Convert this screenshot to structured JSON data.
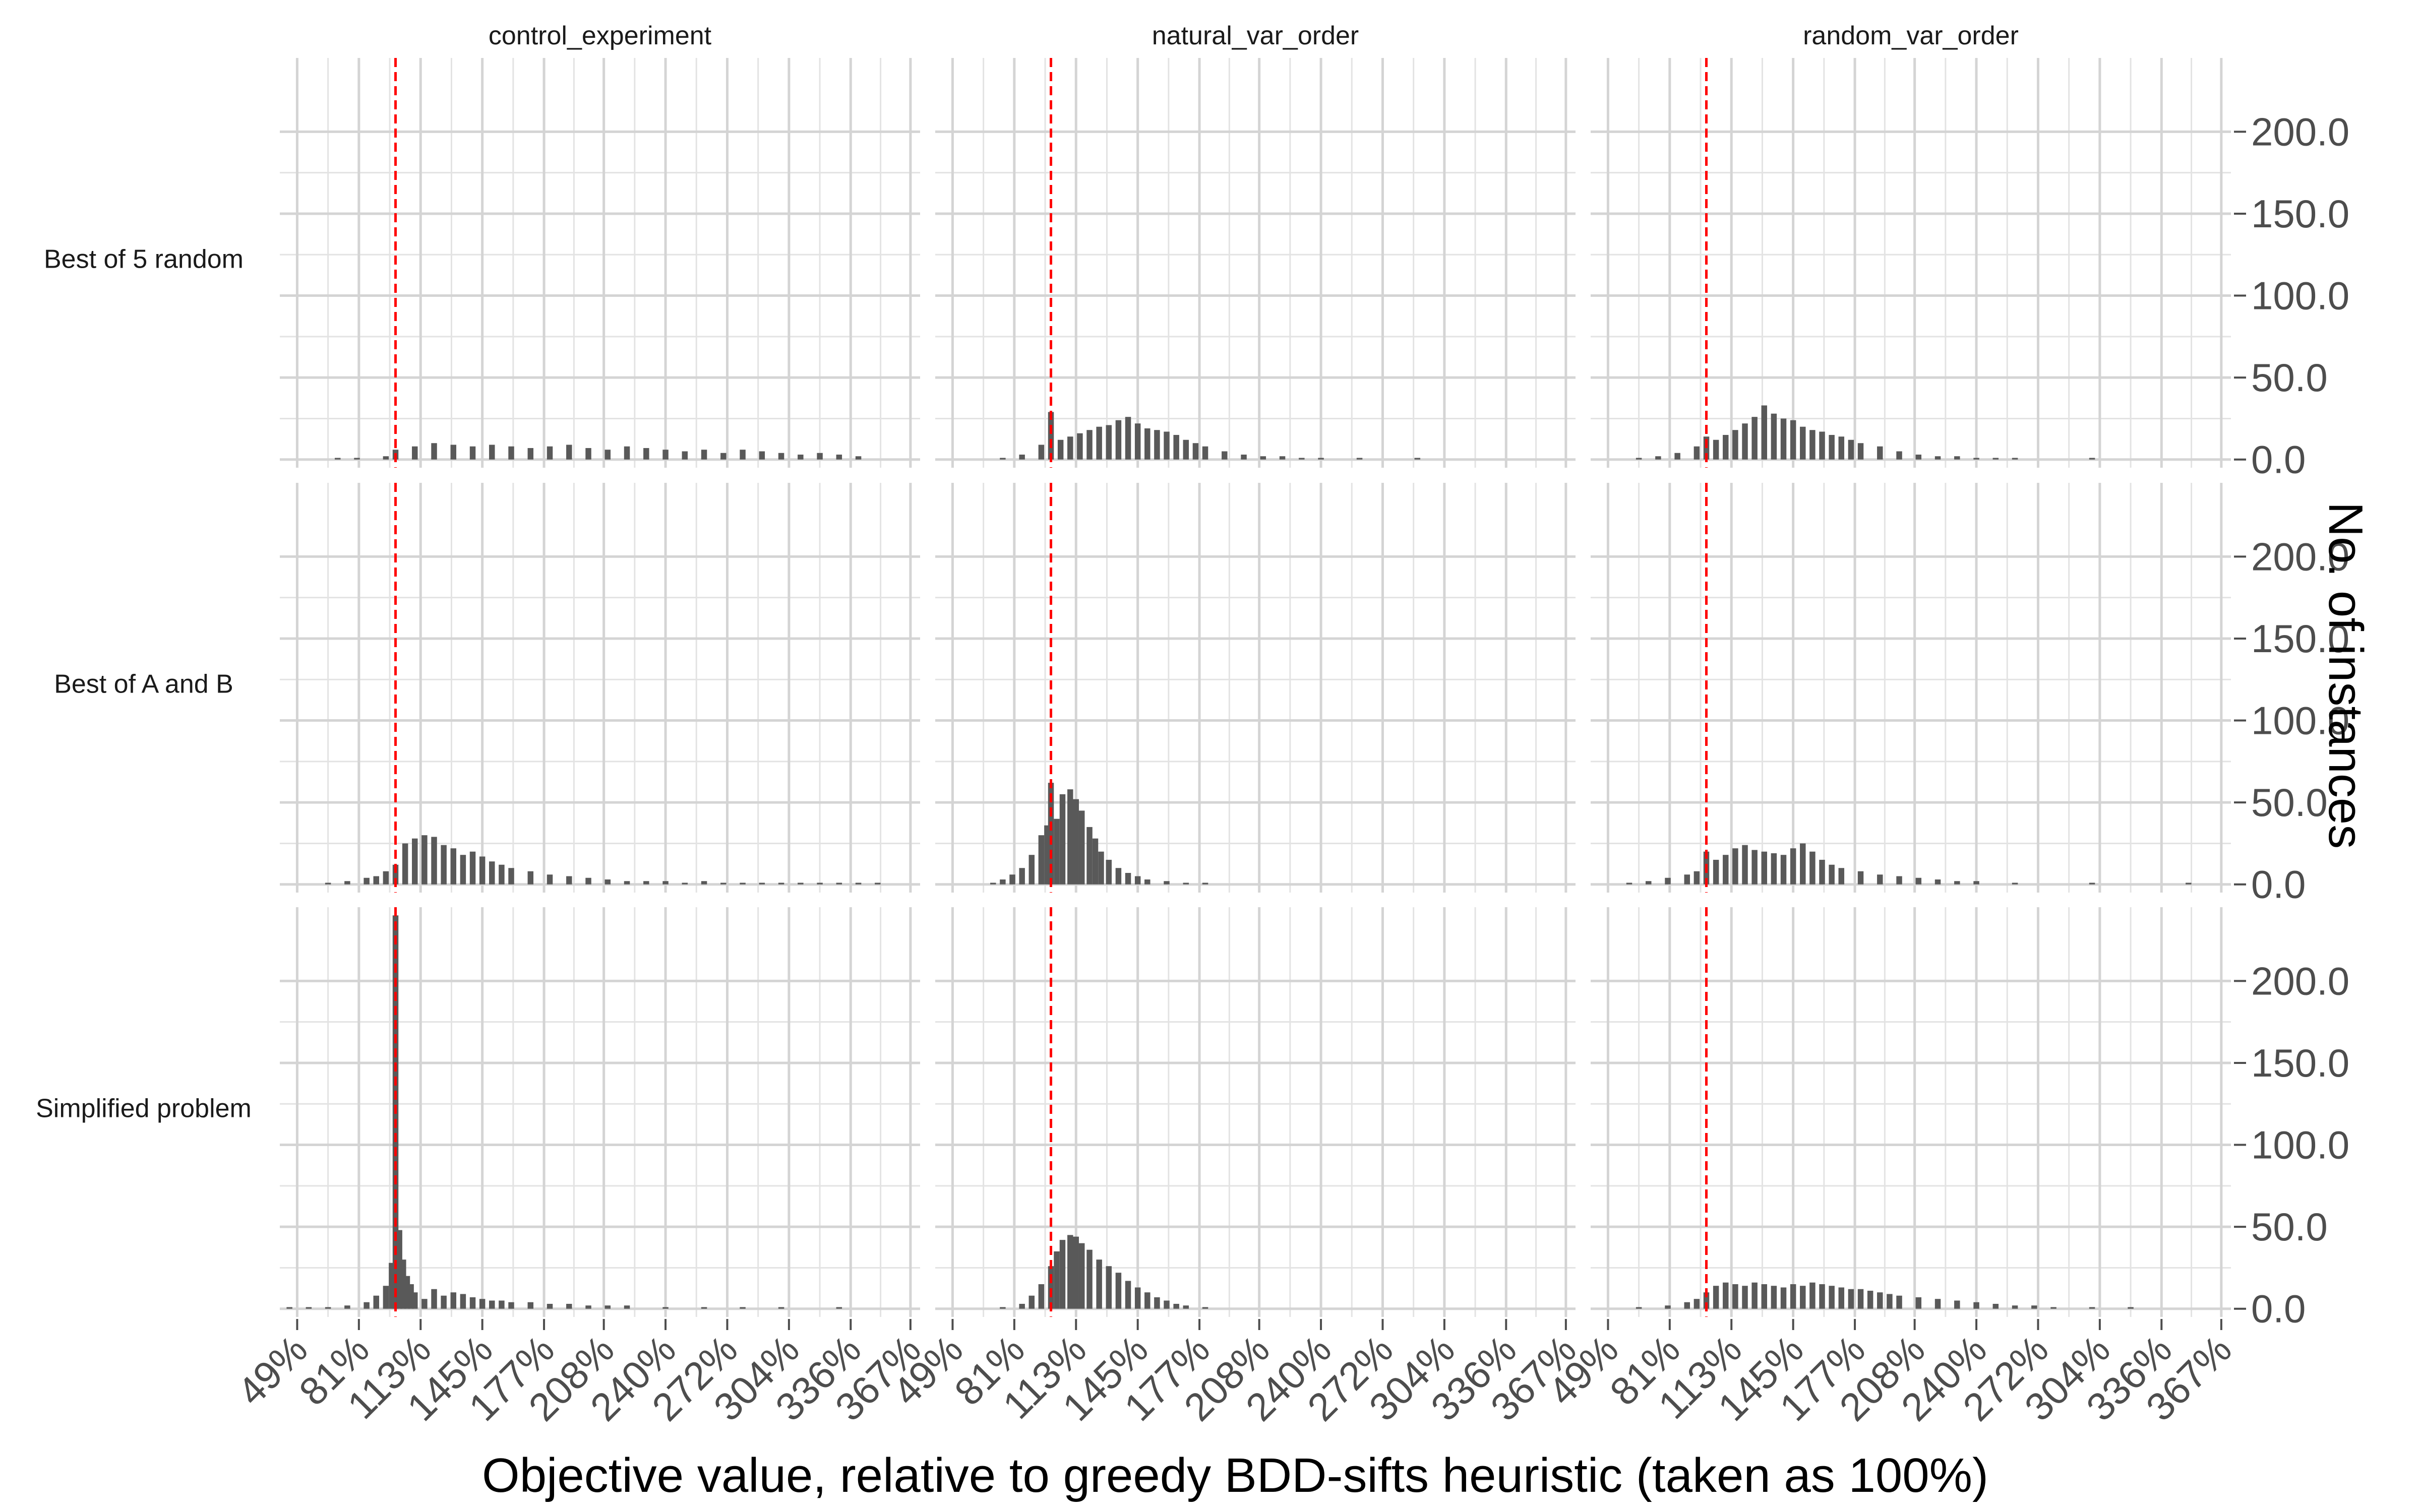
{
  "chart_data": {
    "type": "bar",
    "subtype": "faceted histogram",
    "xlabel": "Objective value, relative to greedy BDD-sifts heuristic (taken as 100%)",
    "ylabel": "No. of instances",
    "x_ticks": [
      "49%",
      "81%",
      "113%",
      "145%",
      "177%",
      "208%",
      "240%",
      "272%",
      "304%",
      "336%",
      "367%"
    ],
    "x_tick_values": [
      49,
      81,
      113,
      145,
      177,
      208,
      240,
      272,
      304,
      336,
      367
    ],
    "xlim": [
      40,
      372
    ],
    "y_ticks": [
      "0.0",
      "50.0",
      "100.0",
      "150.0",
      "200.0"
    ],
    "y_tick_values": [
      0,
      50,
      100,
      150,
      200
    ],
    "ylim": [
      -5,
      245
    ],
    "reference_line": {
      "x": 100,
      "color": "#ff0000",
      "style": "dashed"
    },
    "bar_color": "#595959",
    "grid": true,
    "columns": [
      "control_experiment",
      "natural_var_order",
      "random_var_order"
    ],
    "rows": [
      "Best of 5 random",
      "Best of A and B",
      "Simplified problem"
    ],
    "panels": [
      {
        "row": "Best of 5 random",
        "column": "control_experiment",
        "x": [
          70,
          80,
          95,
          100,
          110,
          120,
          130,
          140,
          150,
          160,
          170,
          180,
          190,
          200,
          210,
          220,
          230,
          240,
          250,
          260,
          270,
          280,
          290,
          300,
          310,
          320,
          330,
          340
        ],
        "y": [
          1,
          1,
          2,
          6,
          8,
          10,
          9,
          8,
          9,
          8,
          7,
          8,
          9,
          7,
          6,
          8,
          7,
          6,
          5,
          6,
          4,
          6,
          5,
          4,
          3,
          4,
          3,
          2
        ]
      },
      {
        "row": "Best of 5 random",
        "column": "natural_var_order",
        "x": [
          75,
          85,
          95,
          100,
          105,
          110,
          115,
          120,
          125,
          130,
          135,
          140,
          145,
          150,
          155,
          160,
          165,
          170,
          175,
          180,
          190,
          200,
          210,
          220,
          230,
          240,
          260,
          290
        ],
        "y": [
          1,
          3,
          9,
          29,
          12,
          14,
          16,
          18,
          20,
          21,
          24,
          26,
          22,
          19,
          18,
          17,
          15,
          12,
          10,
          8,
          5,
          3,
          2,
          2,
          1,
          1,
          1,
          1
        ]
      },
      {
        "row": "Best of 5 random",
        "column": "random_var_order",
        "x": [
          65,
          75,
          85,
          95,
          100,
          105,
          110,
          115,
          120,
          125,
          130,
          135,
          140,
          145,
          150,
          155,
          160,
          165,
          170,
          175,
          180,
          190,
          200,
          210,
          220,
          230,
          240,
          250,
          260,
          300
        ],
        "y": [
          1,
          2,
          4,
          8,
          14,
          12,
          15,
          18,
          22,
          26,
          33,
          28,
          25,
          24,
          20,
          18,
          17,
          15,
          14,
          12,
          10,
          8,
          5,
          3,
          2,
          2,
          1,
          1,
          1,
          1
        ]
      },
      {
        "row": "Best of A and B",
        "column": "control_experiment",
        "x": [
          65,
          75,
          85,
          90,
          95,
          100,
          105,
          110,
          115,
          120,
          125,
          130,
          135,
          140,
          145,
          150,
          155,
          160,
          170,
          180,
          190,
          200,
          210,
          220,
          230,
          240,
          250,
          260,
          270,
          280,
          290,
          300,
          310,
          320,
          330,
          340,
          350
        ],
        "y": [
          1,
          2,
          4,
          5,
          8,
          12,
          25,
          28,
          30,
          29,
          24,
          22,
          18,
          20,
          17,
          14,
          12,
          10,
          8,
          6,
          5,
          4,
          3,
          2,
          2,
          2,
          1,
          2,
          1,
          1,
          1,
          1,
          1,
          1,
          1,
          1,
          1
        ]
      },
      {
        "row": "Best of A and B",
        "column": "natural_var_order",
        "x": [
          70,
          75,
          80,
          85,
          90,
          95,
          98,
          100,
          103,
          106,
          110,
          113,
          116,
          120,
          123,
          126,
          130,
          135,
          140,
          145,
          150,
          160,
          170,
          180
        ],
        "y": [
          1,
          3,
          6,
          10,
          18,
          30,
          36,
          62,
          40,
          55,
          58,
          52,
          45,
          35,
          28,
          20,
          15,
          10,
          7,
          5,
          3,
          2,
          1,
          1
        ]
      },
      {
        "row": "Best of A and B",
        "column": "random_var_order",
        "x": [
          60,
          70,
          80,
          90,
          95,
          100,
          105,
          110,
          115,
          120,
          125,
          130,
          135,
          140,
          145,
          150,
          155,
          160,
          165,
          170,
          180,
          190,
          200,
          210,
          220,
          230,
          240,
          260,
          300,
          350
        ],
        "y": [
          1,
          2,
          4,
          6,
          8,
          20,
          15,
          18,
          22,
          24,
          21,
          20,
          19,
          18,
          22,
          25,
          20,
          15,
          12,
          10,
          8,
          6,
          5,
          4,
          3,
          2,
          2,
          1,
          1,
          1
        ]
      },
      {
        "row": "Simplified problem",
        "column": "control_experiment",
        "x": [
          45,
          55,
          65,
          75,
          85,
          90,
          95,
          98,
          100,
          102,
          104,
          106,
          108,
          110,
          115,
          120,
          125,
          130,
          135,
          140,
          145,
          150,
          155,
          160,
          170,
          180,
          190,
          200,
          210,
          220,
          240,
          260,
          280,
          300,
          330
        ],
        "y": [
          1,
          1,
          1,
          2,
          4,
          8,
          14,
          28,
          240,
          48,
          30,
          20,
          15,
          10,
          6,
          12,
          8,
          10,
          9,
          7,
          6,
          5,
          5,
          4,
          4,
          3,
          3,
          2,
          2,
          2,
          1,
          1,
          1,
          1,
          1
        ]
      },
      {
        "row": "Simplified problem",
        "column": "natural_var_order",
        "x": [
          75,
          85,
          90,
          95,
          100,
          103,
          106,
          110,
          113,
          116,
          120,
          125,
          130,
          135,
          140,
          145,
          150,
          155,
          160,
          165,
          170,
          180
        ],
        "y": [
          1,
          3,
          8,
          15,
          26,
          35,
          42,
          45,
          44,
          40,
          36,
          30,
          26,
          22,
          17,
          13,
          10,
          7,
          5,
          3,
          2,
          1
        ]
      },
      {
        "row": "Simplified problem",
        "column": "random_var_order",
        "x": [
          65,
          80,
          90,
          95,
          100,
          105,
          110,
          115,
          120,
          125,
          130,
          135,
          140,
          145,
          150,
          155,
          160,
          165,
          170,
          175,
          180,
          185,
          190,
          195,
          200,
          210,
          220,
          230,
          240,
          250,
          260,
          270,
          280,
          300,
          320
        ],
        "y": [
          1,
          2,
          4,
          6,
          10,
          14,
          16,
          15,
          14,
          16,
          15,
          14,
          13,
          15,
          14,
          16,
          15,
          14,
          13,
          12,
          12,
          11,
          10,
          9,
          8,
          7,
          6,
          5,
          4,
          3,
          2,
          2,
          1,
          1,
          1
        ]
      }
    ]
  }
}
